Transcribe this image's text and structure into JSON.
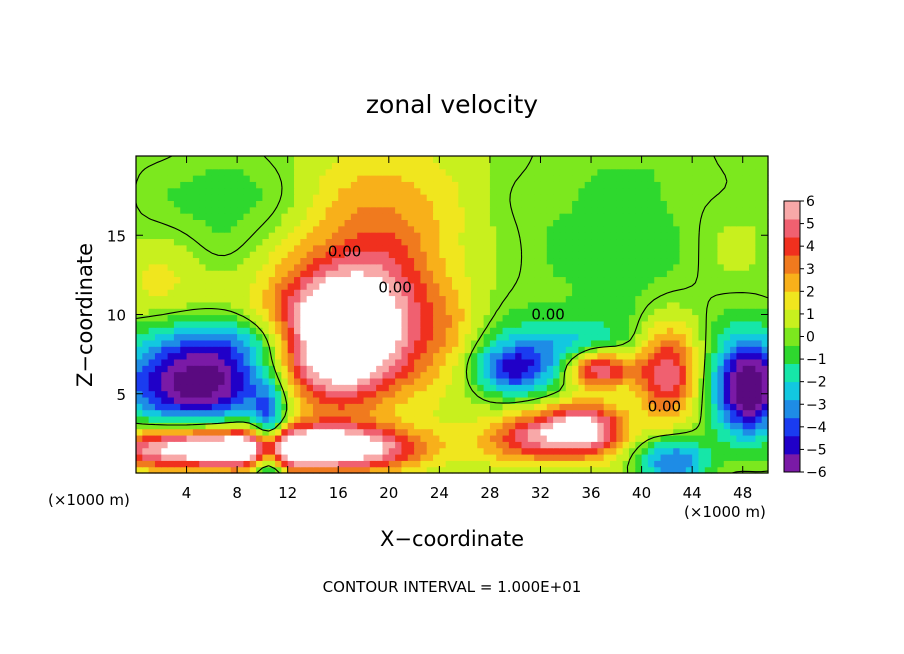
{
  "chart_data": {
    "type": "heatmap",
    "title": "zonal velocity",
    "xlabel": "X−coordinate",
    "ylabel": "Z−coordinate",
    "x_unit_label_left": "(×1000 m)",
    "x_unit_label_right": "(×1000 m)",
    "footer": "CONTOUR INTERVAL = 1.000E+01",
    "xlim": [
      0,
      50
    ],
    "ylim": [
      0,
      20
    ],
    "x_ticks": [
      "4",
      "8",
      "12",
      "16",
      "20",
      "24",
      "28",
      "32",
      "36",
      "40",
      "44",
      "48"
    ],
    "x_tick_values": [
      4,
      8,
      12,
      16,
      20,
      24,
      28,
      32,
      36,
      40,
      44,
      48
    ],
    "y_ticks": [
      "5",
      "10",
      "15"
    ],
    "y_tick_values": [
      5,
      10,
      15
    ],
    "colorbar": {
      "min": -6,
      "max": 6,
      "tick_labels": [
        "6",
        "5",
        "4",
        "3",
        "2",
        "1",
        "0",
        "−1",
        "−2",
        "−3",
        "−4",
        "−5",
        "−6"
      ],
      "tick_values": [
        6,
        5,
        4,
        3,
        2,
        1,
        0,
        -1,
        -2,
        -3,
        -4,
        -5,
        -6
      ],
      "colors": [
        "#7a1aa6",
        "#2000c8",
        "#1a3cf0",
        "#1e8ce6",
        "#12c8e0",
        "#16e6a8",
        "#2ed82e",
        "#7ce81e",
        "#c8f01e",
        "#f0e61e",
        "#f8b01a",
        "#f07a1e",
        "#f0301e",
        "#f06070",
        "#f8a8a8"
      ]
    },
    "contour_labels": [
      {
        "text": "0.00",
        "x": 16.5,
        "z": 13.8
      },
      {
        "text": "0.00",
        "x": 20.5,
        "z": 11.5
      },
      {
        "text": "0.00",
        "x": 32.6,
        "z": 9.8
      },
      {
        "text": "0.00",
        "x": 41.8,
        "z": 4.0
      }
    ],
    "field_features": [
      {
        "kind": "gauss",
        "x": 19.0,
        "z": 15.5,
        "sx": 5.0,
        "sz": 4.0,
        "amp": 2.8
      },
      {
        "kind": "gauss",
        "x": 17.0,
        "z": 9.0,
        "sx": 4.2,
        "sz": 3.0,
        "amp": 7.5
      },
      {
        "kind": "gauss",
        "x": 14.5,
        "z": 7.5,
        "sx": 3.0,
        "sz": 2.5,
        "amp": 3.0
      },
      {
        "kind": "gauss",
        "x": 31.0,
        "z": 2.3,
        "sx": 2.5,
        "sz": 1.1,
        "amp": 4.2
      },
      {
        "kind": "gauss",
        "x": 35.5,
        "z": 2.8,
        "sx": 2.2,
        "sz": 1.2,
        "amp": 6.5
      },
      {
        "kind": "gauss",
        "x": 42.0,
        "z": 6.5,
        "sx": 1.8,
        "sz": 2.0,
        "amp": 5.5
      },
      {
        "kind": "gauss",
        "x": 36.5,
        "z": 6.6,
        "sx": 2.0,
        "sz": 0.9,
        "amp": 7.0
      },
      {
        "kind": "gauss",
        "x": 5.0,
        "z": 5.6,
        "sx": 4.5,
        "sz": 1.8,
        "amp": -7.0
      },
      {
        "kind": "gauss",
        "x": 8.0,
        "z": 8.4,
        "sx": 5.5,
        "sz": 1.2,
        "amp": -2.8
      },
      {
        "kind": "gauss",
        "x": 5.0,
        "z": 1.6,
        "sx": 5.5,
        "sz": 0.9,
        "amp": 7.0
      },
      {
        "kind": "gauss",
        "x": 15.5,
        "z": 1.6,
        "sx": 5.0,
        "sz": 1.0,
        "amp": 7.0
      },
      {
        "kind": "gauss",
        "x": 10.5,
        "z": 1.5,
        "sx": 0.9,
        "sz": 2.5,
        "amp": -5.0
      },
      {
        "kind": "gauss",
        "x": 33.0,
        "z": 7.3,
        "sx": 5.0,
        "sz": 1.6,
        "amp": -3.5
      },
      {
        "kind": "gauss",
        "x": 29.5,
        "z": 6.5,
        "sx": 1.8,
        "sz": 1.0,
        "amp": -3.0
      },
      {
        "kind": "gauss",
        "x": 48.5,
        "z": 5.5,
        "sx": 2.0,
        "sz": 2.2,
        "amp": -7.5
      },
      {
        "kind": "gauss",
        "x": 42.5,
        "z": 0.8,
        "sx": 2.0,
        "sz": 1.0,
        "amp": -4.0
      },
      {
        "kind": "gauss",
        "x": 9.0,
        "z": 17.0,
        "sx": 6.0,
        "sz": 3.0,
        "amp": -1.2
      },
      {
        "kind": "gauss",
        "x": 40.0,
        "z": 15.0,
        "sx": 9.0,
        "sz": 5.0,
        "amp": -1.1
      },
      {
        "kind": "gauss",
        "x": 47.0,
        "z": 14.5,
        "sx": 3.0,
        "sz": 3.0,
        "amp": 0.9
      },
      {
        "kind": "gauss",
        "x": 2.0,
        "z": 12.0,
        "sx": 2.5,
        "sz": 2.0,
        "amp": 1.2
      },
      {
        "kind": "gauss",
        "x": 25.0,
        "z": 8.0,
        "sx": 2.0,
        "sz": 2.0,
        "amp": 1.5
      }
    ]
  }
}
